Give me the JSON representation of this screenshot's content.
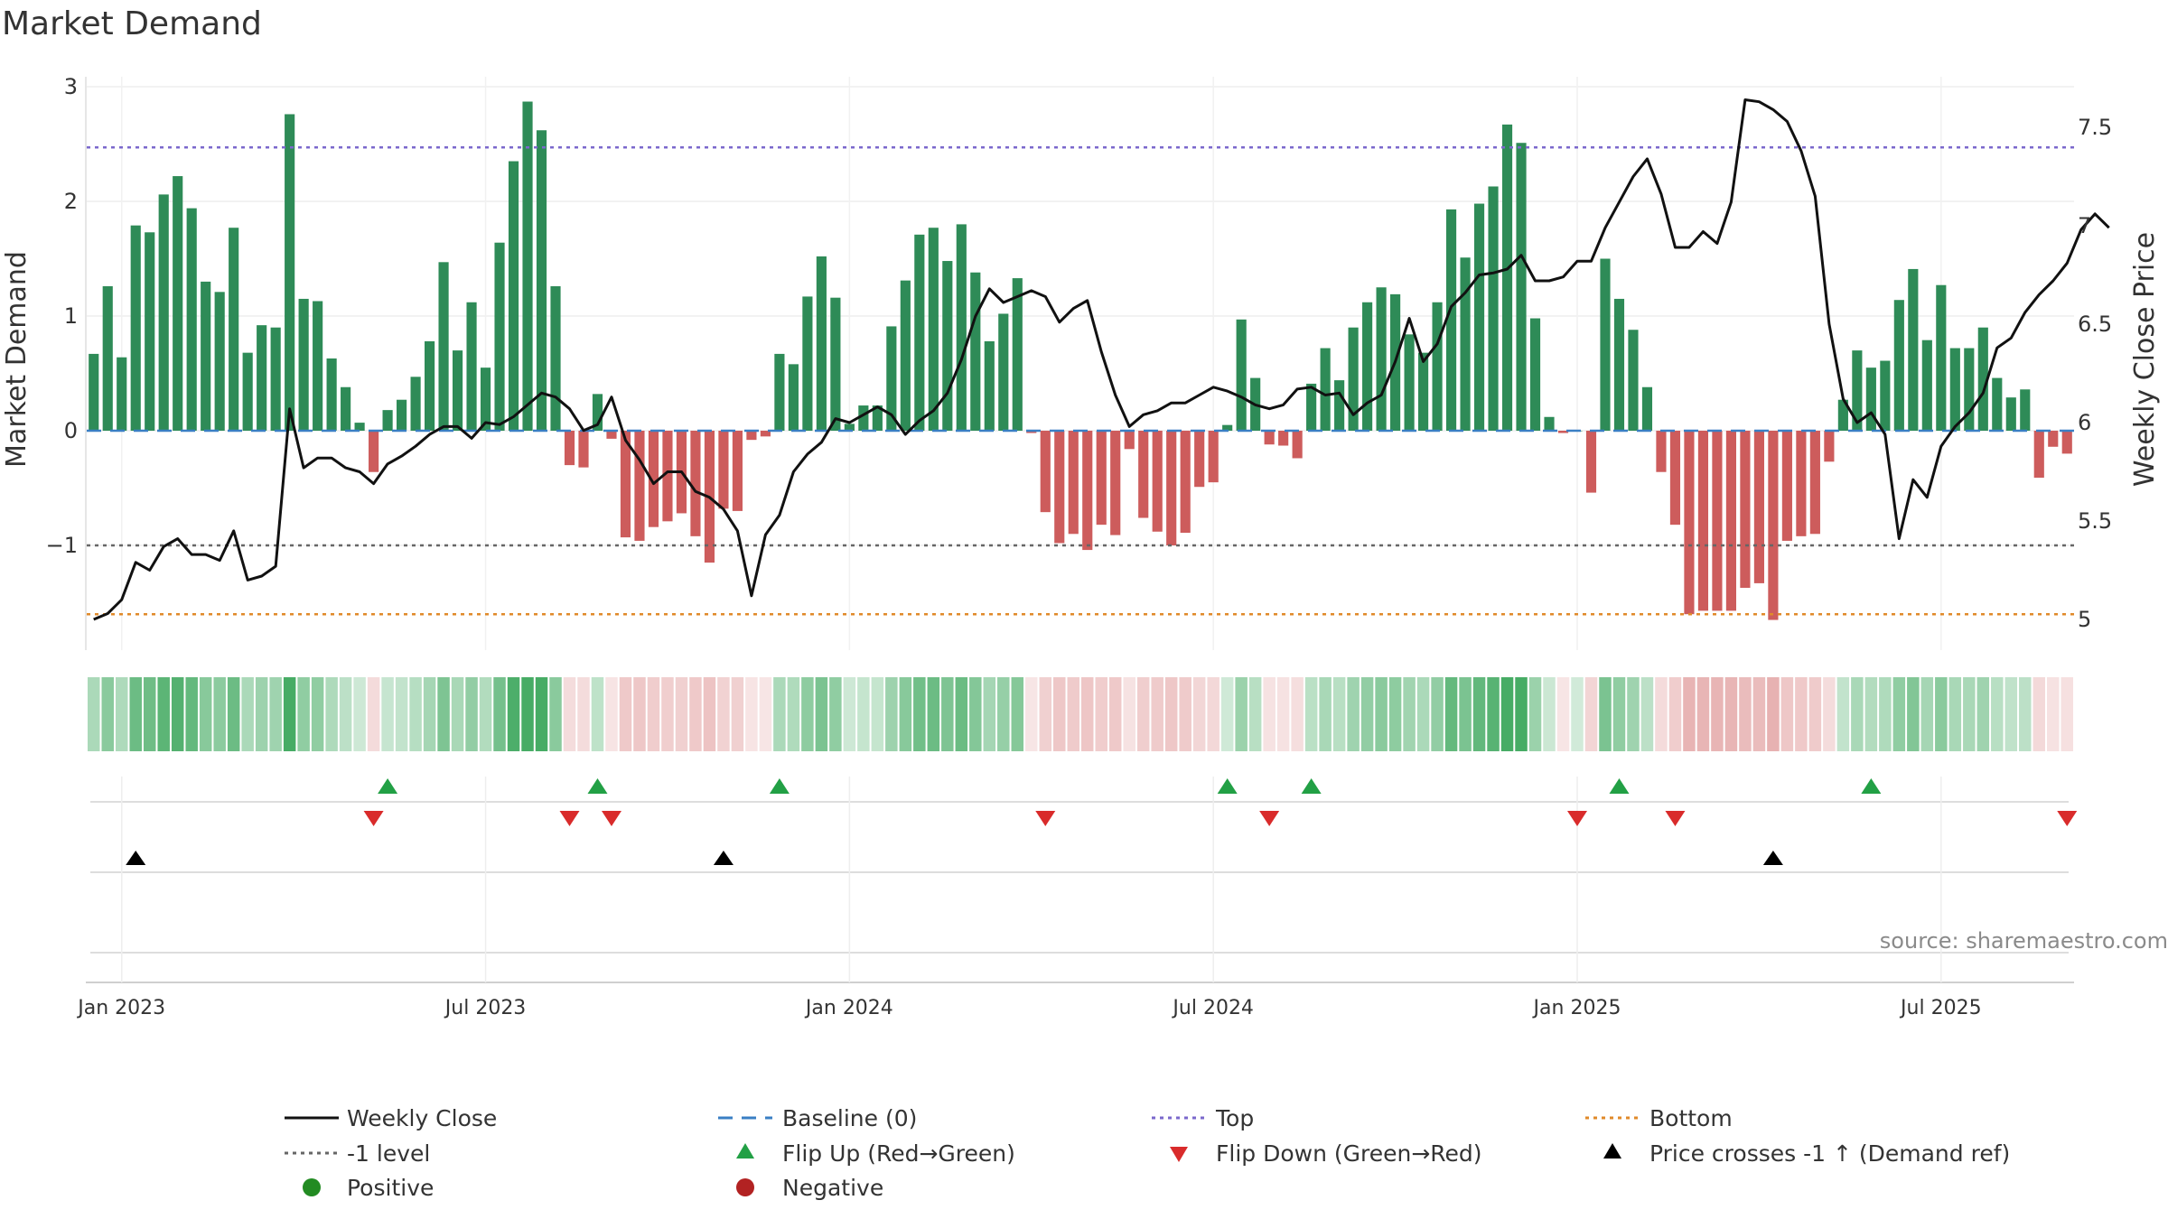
{
  "chart_data": {
    "type": "bar",
    "title": "Market Demand",
    "ylabel": "Market Demand",
    "y2label": "Weekly Close Price",
    "ylim": [
      -1.9,
      3.1
    ],
    "y2lim": [
      4.95,
      7.7
    ],
    "yticks": [
      3,
      2,
      1,
      0,
      -1
    ],
    "yticklabels": [
      "3",
      "2",
      "1",
      "0",
      "−1"
    ],
    "y2ticks": [
      7.5,
      7,
      6.5,
      6,
      5.5,
      5
    ],
    "y2ticklabels": [
      "7.5",
      "7",
      "6.5",
      "6",
      "5.5",
      "5"
    ],
    "xticklabels": [
      "Jan 2023",
      "Jul 2023",
      "Jan 2024",
      "Jul 2024",
      "Jan 2025",
      "Jul 2025"
    ],
    "xtick_positions": [
      2,
      28,
      54,
      80,
      106,
      132
    ],
    "reference_lines": {
      "top": 2.47,
      "minus_one": -1.0,
      "bottom": -1.6,
      "baseline": 0
    },
    "source": "source: sharemaestro.com",
    "colors": {
      "positive": "#2e8b57",
      "negative": "#cd5c5c",
      "price": "#111111",
      "top": "#7b68cc",
      "bottom": "#e08a2a",
      "minus_one": "#666666",
      "baseline": "#3a7fc4",
      "flip_up": "#22a045",
      "flip_down": "#d92b2b",
      "cross": "#000000"
    },
    "demand": [
      0.67,
      1.26,
      0.64,
      1.79,
      1.73,
      2.06,
      2.22,
      1.94,
      1.3,
      1.21,
      1.77,
      0.68,
      0.92,
      0.9,
      2.76,
      1.15,
      1.13,
      0.63,
      0.38,
      0.07,
      -0.36,
      0.18,
      0.27,
      0.47,
      0.78,
      1.47,
      0.7,
      1.12,
      0.55,
      1.64,
      2.35,
      2.87,
      2.62,
      1.26,
      -0.3,
      -0.32,
      0.32,
      -0.07,
      -0.93,
      -0.96,
      -0.84,
      -0.79,
      -0.72,
      -0.92,
      -1.15,
      -0.68,
      -0.7,
      -0.08,
      -0.05,
      0.67,
      0.58,
      1.17,
      1.52,
      1.16,
      0.06,
      0.22,
      0.22,
      0.91,
      1.31,
      1.71,
      1.77,
      1.48,
      1.8,
      1.38,
      0.78,
      1.02,
      1.33,
      -0.02,
      -0.71,
      -0.98,
      -0.9,
      -1.04,
      -0.82,
      -0.91,
      -0.16,
      -0.76,
      -0.88,
      -1.0,
      -0.89,
      -0.49,
      -0.45,
      0.05,
      0.97,
      0.46,
      -0.12,
      -0.13,
      -0.24,
      0.41,
      0.72,
      0.44,
      0.9,
      1.12,
      1.25,
      1.19,
      0.84,
      0.68,
      1.12,
      1.93,
      1.51,
      1.98,
      2.13,
      2.67,
      2.51,
      0.98,
      0.12,
      -0.02,
      0.0,
      -0.54,
      1.5,
      1.15,
      0.88,
      0.38,
      -0.36,
      -0.82,
      -1.6,
      -1.57,
      -1.57,
      -1.57,
      -1.37,
      -1.33,
      -1.65,
      -0.96,
      -0.92,
      -0.9,
      -0.27,
      0.27,
      0.7,
      0.55,
      0.61,
      1.14,
      1.41,
      0.79,
      1.27,
      0.72,
      0.72,
      0.9,
      0.46,
      0.29,
      0.36,
      -0.41,
      -0.14,
      -0.2
    ],
    "price": [
      5.0,
      5.03,
      5.1,
      5.29,
      5.25,
      5.37,
      5.41,
      5.33,
      5.33,
      5.3,
      5.45,
      5.2,
      5.22,
      5.27,
      6.07,
      5.77,
      5.82,
      5.82,
      5.77,
      5.75,
      5.69,
      5.79,
      5.83,
      5.88,
      5.94,
      5.98,
      5.98,
      5.92,
      6.0,
      5.99,
      6.03,
      6.09,
      6.15,
      6.13,
      6.07,
      5.96,
      5.99,
      6.13,
      5.91,
      5.81,
      5.69,
      5.75,
      5.75,
      5.65,
      5.62,
      5.56,
      5.45,
      5.12,
      5.43,
      5.53,
      5.75,
      5.84,
      5.9,
      6.02,
      6.0,
      6.04,
      6.08,
      6.04,
      5.94,
      6.01,
      6.06,
      6.15,
      6.32,
      6.54,
      6.68,
      6.61,
      6.64,
      6.67,
      6.64,
      6.51,
      6.58,
      6.62,
      6.36,
      6.14,
      5.98,
      6.04,
      6.06,
      6.1,
      6.1,
      6.14,
      6.18,
      6.16,
      6.13,
      6.09,
      6.07,
      6.09,
      6.17,
      6.18,
      6.14,
      6.15,
      6.04,
      6.1,
      6.14,
      6.31,
      6.53,
      6.31,
      6.4,
      6.59,
      6.66,
      6.75,
      6.76,
      6.78,
      6.85,
      6.72,
      6.72,
      6.74,
      6.82,
      6.82,
      6.99,
      7.12,
      7.25,
      7.34,
      7.16,
      6.89,
      6.89,
      6.97,
      6.91,
      7.12,
      7.64,
      7.63,
      7.59,
      7.53,
      7.38,
      7.15,
      6.5,
      6.12,
      6.0,
      6.05,
      5.94,
      5.41,
      5.71,
      5.62,
      5.88,
      5.98,
      6.05,
      6.15,
      6.38,
      6.43,
      6.56,
      6.65,
      6.72,
      6.81,
      6.98,
      7.06,
      6.99
    ],
    "events": {
      "flip_up": [
        21,
        36,
        49,
        81,
        87,
        109,
        127
      ],
      "flip_down": [
        20,
        34,
        37,
        68,
        84,
        106,
        113,
        141
      ],
      "price_cross": [
        3,
        45,
        120
      ]
    }
  },
  "legend": {
    "weekly_close": "Weekly Close",
    "baseline": "Baseline (0)",
    "top": "Top",
    "bottom": "Bottom",
    "minus_one": "-1 level",
    "flip_up": "Flip Up (Red→Green)",
    "flip_down": "Flip Down (Green→Red)",
    "price_cross": "Price crosses -1 ↑ (Demand ref)",
    "positive": "Positive",
    "negative": "Negative"
  }
}
